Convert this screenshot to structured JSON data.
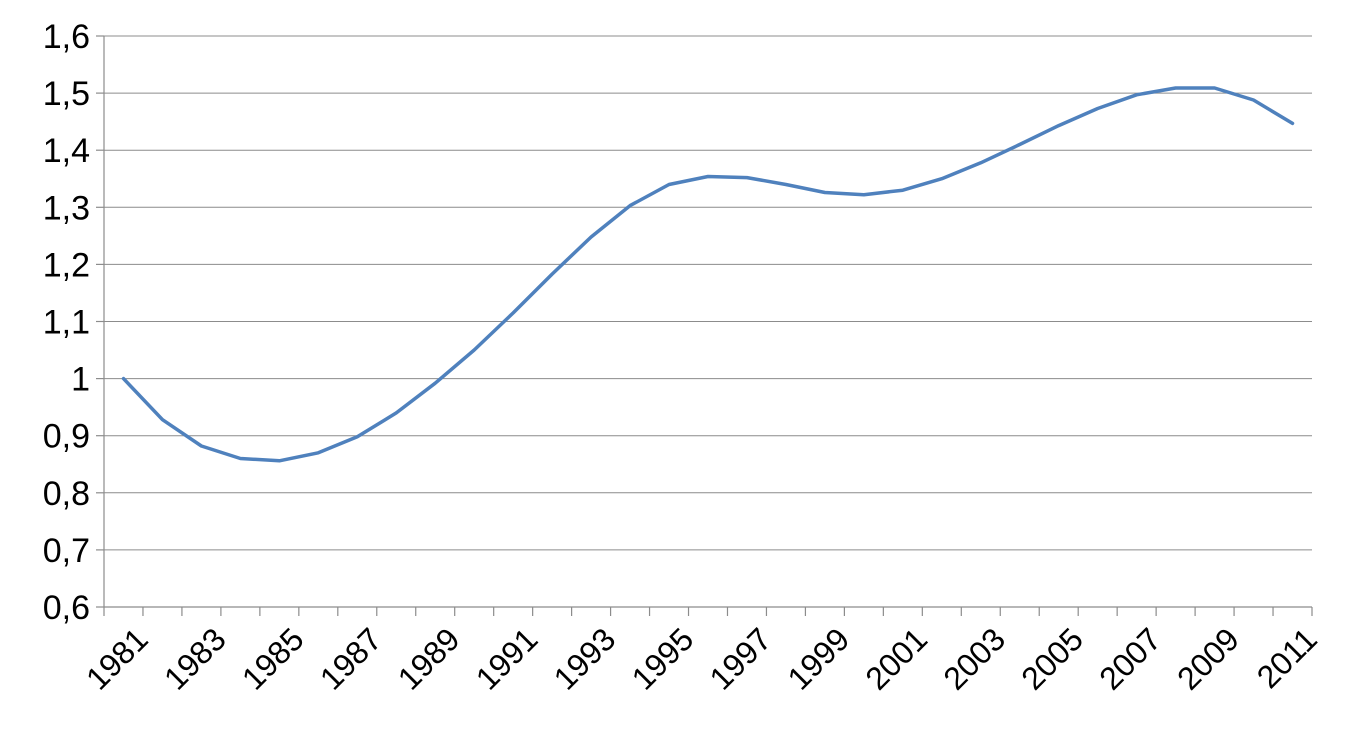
{
  "chart_data": {
    "type": "line",
    "title": "",
    "xlabel": "",
    "ylabel": "",
    "ylim": [
      0.6,
      1.6
    ],
    "y_ticks": [
      "0,6",
      "0,7",
      "0,8",
      "0,9",
      "1",
      "1,1",
      "1,2",
      "1,3",
      "1,4",
      "1,5",
      "1,6"
    ],
    "y_tick_values": [
      0.6,
      0.7,
      0.8,
      0.9,
      1.0,
      1.1,
      1.2,
      1.3,
      1.4,
      1.5,
      1.6
    ],
    "x_tick_labels": [
      "1981",
      "1983",
      "1985",
      "1987",
      "1989",
      "1991",
      "1993",
      "1995",
      "1997",
      "1999",
      "2001",
      "2003",
      "2005",
      "2007",
      "2009",
      "2011"
    ],
    "grid": true,
    "legend": "none",
    "x": [
      1981,
      1982,
      1983,
      1984,
      1985,
      1986,
      1987,
      1988,
      1989,
      1990,
      1991,
      1992,
      1993,
      1994,
      1995,
      1996,
      1997,
      1998,
      1999,
      2000,
      2001,
      2002,
      2003,
      2004,
      2005,
      2006,
      2007,
      2008,
      2009,
      2010,
      2011
    ],
    "series": [
      {
        "color": "#4f81bd",
        "values": [
          1.0,
          0.928,
          0.882,
          0.86,
          0.856,
          0.87,
          0.898,
          0.94,
          0.992,
          1.05,
          1.115,
          1.183,
          1.248,
          1.303,
          1.34,
          1.354,
          1.352,
          1.34,
          1.326,
          1.322,
          1.33,
          1.35,
          1.378,
          1.41,
          1.443,
          1.473,
          1.497,
          1.509,
          1.509,
          1.488,
          1.447
        ]
      }
    ]
  }
}
